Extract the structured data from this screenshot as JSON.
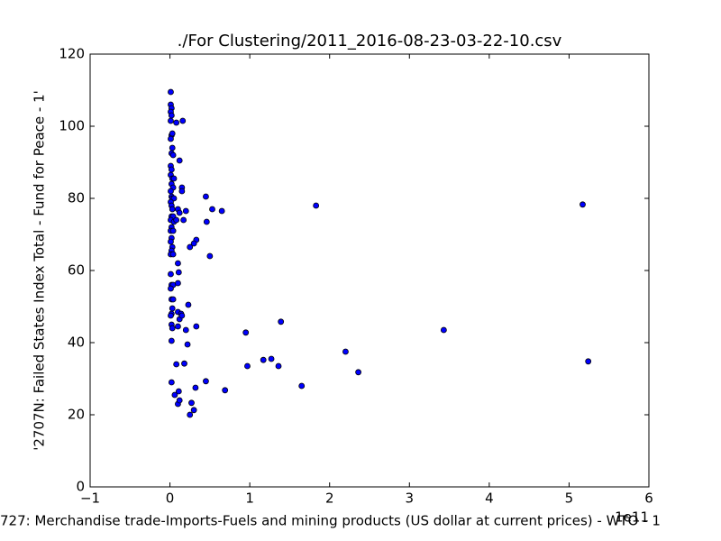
{
  "chart_data": {
    "type": "scatter",
    "title": "./For Clustering/2011_2016-08-23-03-22-10.csv",
    "xlabel": "727: Merchandise trade-Imports-Fuels and mining products (US dollar at current prices) - WTO - 1",
    "ylabel": "'2707N: Failed States Index Total - Fund for Peace - 1'",
    "x_offset_label": "1e11",
    "color": "#0000ff",
    "x": [
      0.01,
      0.01,
      0.02,
      0.01,
      0.02,
      0.01,
      0.02,
      0.03,
      0.01,
      0.03,
      0.02,
      0.04,
      0.01,
      0.02,
      0.01,
      0.03,
      0.05,
      0.02,
      0.04,
      0.01,
      0.02,
      0.03,
      0.05,
      0.01,
      0.02,
      0.03,
      0.02,
      0.04,
      0.01,
      0.05,
      0.02,
      0.01,
      0.04,
      0.02,
      0.01,
      0.03,
      0.02,
      0.01,
      0.04,
      0.01,
      0.02,
      0.04,
      0.01,
      0.02,
      0.04,
      0.03,
      0.02,
      0.01,
      0.02,
      0.03,
      0.02,
      0.02,
      0.08,
      0.16,
      0.12,
      0.15,
      0.15,
      0.2,
      0.1,
      0.12,
      0.17,
      0.08,
      0.45,
      0.53,
      0.65,
      0.46,
      0.33,
      0.3,
      0.25,
      0.5,
      0.1,
      0.11,
      0.1,
      0.1,
      0.14,
      0.12,
      0.15,
      0.23,
      0.1,
      0.33,
      0.2,
      0.22,
      0.08,
      0.18,
      0.06,
      0.11,
      0.1,
      0.12,
      0.25,
      0.27,
      0.3,
      0.32,
      0.45,
      0.69,
      1.83,
      5.17,
      0.95,
      1.39,
      0.97,
      1.17,
      1.27,
      1.36,
      1.65,
      2.2,
      2.36,
      3.43,
      5.24
    ],
    "values": [
      109.5,
      106,
      105,
      104,
      103,
      101.5,
      97.5,
      98,
      96.5,
      94,
      92.5,
      92,
      89,
      88,
      86.5,
      85.5,
      85.5,
      84,
      83,
      82,
      80.5,
      80,
      80,
      79,
      78,
      77,
      75,
      75,
      74,
      73.5,
      72,
      71,
      71,
      69,
      68,
      66.5,
      65.5,
      64.5,
      64.5,
      59,
      56,
      56,
      55,
      52,
      52,
      49.5,
      48,
      47.5,
      45,
      44,
      40.5,
      29,
      101,
      101.5,
      90.5,
      83,
      82,
      76.5,
      77,
      76,
      74,
      74,
      80.5,
      77,
      76.5,
      73.5,
      68.5,
      67.5,
      66.5,
      64,
      62,
      59.5,
      56.5,
      48.5,
      48,
      46.5,
      47.5,
      50.5,
      44.5,
      44.5,
      43.5,
      39.5,
      34,
      34.2,
      25.5,
      26.5,
      23,
      24,
      20,
      23.3,
      21.3,
      27.5,
      29.3,
      26.8,
      78,
      78.3,
      42.8,
      45.8,
      33.5,
      35.2,
      35.5,
      33.5,
      28,
      37.5,
      31.8,
      43.5,
      34.8
    ],
    "xlim": [
      -1,
      6
    ],
    "xticks": [
      {
        "value": -1,
        "label": "−1"
      },
      0,
      1,
      2,
      3,
      4,
      5,
      6
    ],
    "ylim": [
      0,
      120
    ],
    "yticks": [
      0,
      20,
      40,
      60,
      80,
      100,
      120
    ]
  }
}
